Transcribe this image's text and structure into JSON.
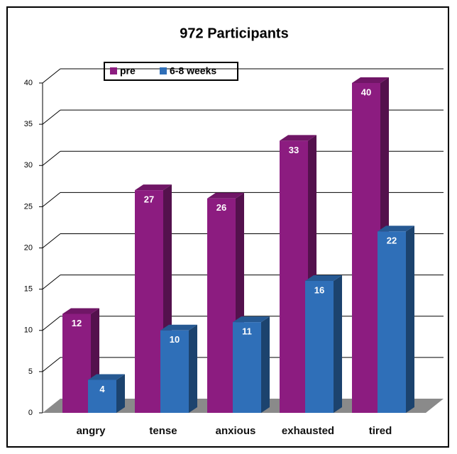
{
  "chart_data": {
    "type": "bar3d",
    "title": "972 Participants",
    "categories": [
      "angry",
      "tense",
      "anxious",
      "exhausted",
      "tired"
    ],
    "series": [
      {
        "name": "pre",
        "color": "#8c1c80",
        "values": [
          12,
          27,
          26,
          33,
          40
        ]
      },
      {
        "name": "6-8 weeks",
        "color": "#2f6fb8",
        "values": [
          4,
          10,
          11,
          16,
          22
        ]
      }
    ],
    "ylim": [
      0,
      40
    ],
    "yticks": [
      0,
      5,
      10,
      15,
      20,
      25,
      30,
      35,
      40
    ],
    "grid": true
  }
}
